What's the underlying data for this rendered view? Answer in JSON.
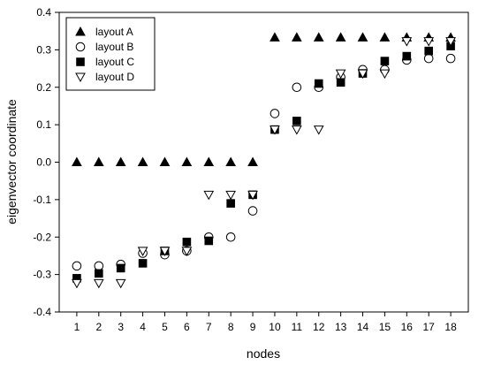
{
  "chart_data": {
    "type": "scatter",
    "xlabel": "nodes",
    "ylabel": "eigenvector coordinate",
    "xlim": [
      0.2,
      18.8
    ],
    "ylim": [
      -0.4,
      0.4
    ],
    "x_ticks": [
      "1",
      "2",
      "3",
      "4",
      "5",
      "6",
      "7",
      "8",
      "9",
      "10",
      "11",
      "12",
      "13",
      "14",
      "15",
      "16",
      "17",
      "18"
    ],
    "y_ticks": [
      "-0.4",
      "-0.3",
      "-0.2",
      "-0.1",
      "0.0",
      "0.1",
      "0.2",
      "0.3",
      "0.4"
    ],
    "grid": false,
    "legend_position": "top-left",
    "x": [
      1,
      2,
      3,
      4,
      5,
      6,
      7,
      8,
      9,
      10,
      11,
      12,
      13,
      14,
      15,
      16,
      17,
      18
    ],
    "series": [
      {
        "name": "layout A",
        "marker": "triangle-up-filled",
        "values": [
          0,
          0,
          0,
          0,
          0,
          0,
          0,
          0,
          0,
          0.333,
          0.333,
          0.333,
          0.333,
          0.333,
          0.333,
          0.333,
          0.333,
          0.333
        ]
      },
      {
        "name": "layout B",
        "marker": "circle-open",
        "values": [
          -0.277,
          -0.277,
          -0.273,
          -0.243,
          -0.247,
          -0.237,
          -0.2,
          -0.2,
          -0.13,
          0.13,
          0.2,
          0.2,
          0.227,
          0.247,
          0.247,
          0.273,
          0.277,
          0.277
        ]
      },
      {
        "name": "layout C",
        "marker": "square-filled",
        "values": [
          -0.31,
          -0.297,
          -0.283,
          -0.27,
          -0.237,
          -0.213,
          -0.21,
          -0.11,
          -0.087,
          0.087,
          0.11,
          0.21,
          0.213,
          0.237,
          0.27,
          0.283,
          0.297,
          0.31
        ]
      },
      {
        "name": "layout D",
        "marker": "triangle-down-open",
        "values": [
          -0.323,
          -0.323,
          -0.323,
          -0.237,
          -0.237,
          -0.237,
          -0.087,
          -0.087,
          -0.087,
          0.087,
          0.087,
          0.087,
          0.237,
          0.237,
          0.237,
          0.323,
          0.323,
          0.323
        ]
      }
    ]
  }
}
